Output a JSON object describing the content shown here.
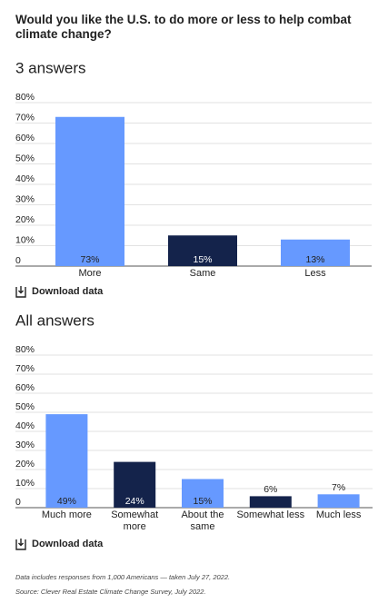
{
  "title": "Would you like the U.S. to do more or less to help combat climate change?",
  "chart_data": [
    {
      "type": "bar",
      "subtitle": "3 answers",
      "categories": [
        "More",
        "Same",
        "Less"
      ],
      "values": [
        73,
        15,
        13
      ],
      "value_labels": [
        "73%",
        "15%",
        "13%"
      ],
      "colors": [
        "#6699ff",
        "#14234b",
        "#6699ff"
      ],
      "ylim": [
        0,
        80
      ],
      "yticks": [
        0,
        {
          "value": 10,
          "label": "10%"
        },
        {
          "value": 20,
          "label": "20%"
        },
        {
          "value": 30,
          "label": "30%"
        },
        {
          "value": 40,
          "label": "40%"
        },
        {
          "value": 50,
          "label": "50%"
        },
        {
          "value": 60,
          "label": "60%"
        },
        {
          "value": 70,
          "label": "70%"
        },
        {
          "value": 80,
          "label": "80%"
        }
      ],
      "grid": true,
      "download_label": "Download data"
    },
    {
      "type": "bar",
      "subtitle": "All answers",
      "categories": [
        "Much more",
        "Somewhat more",
        "About the same",
        "Somewhat less",
        "Much less"
      ],
      "values": [
        49,
        24,
        15,
        6,
        7
      ],
      "value_labels": [
        "49%",
        "24%",
        "15%",
        "6%",
        "7%"
      ],
      "colors": [
        "#6699ff",
        "#14234b",
        "#6699ff",
        "#14234b",
        "#6699ff"
      ],
      "ylim": [
        0,
        80
      ],
      "yticks": [
        0,
        {
          "value": 10,
          "label": "10%"
        },
        {
          "value": 20,
          "label": "20%"
        },
        {
          "value": 30,
          "label": "30%"
        },
        {
          "value": 40,
          "label": "40%"
        },
        {
          "value": 50,
          "label": "50%"
        },
        {
          "value": 60,
          "label": "60%"
        },
        {
          "value": 70,
          "label": "70%"
        },
        {
          "value": 80,
          "label": "80%"
        }
      ],
      "grid": true,
      "download_label": "Download data"
    }
  ],
  "notes": [
    "Data includes responses from 1,000 Americans — taken July 27, 2022.",
    "Source: Clever Real Estate Climate Change Survey, July 2022."
  ]
}
